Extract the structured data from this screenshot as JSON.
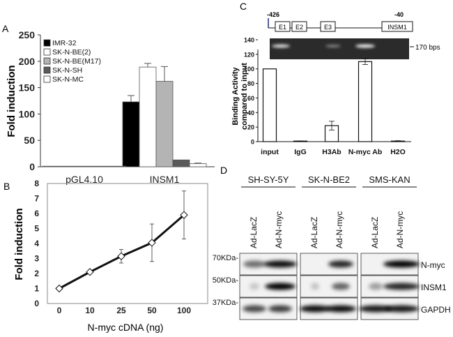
{
  "panels": {
    "A": {
      "label": "A",
      "chart_data": {
        "type": "bar",
        "ylabel": "Fold induction",
        "ylim": [
          0,
          250
        ],
        "yticks": [
          "0",
          "50",
          "100",
          "150",
          "200",
          "250"
        ],
        "categories": [
          "pGL4.10",
          "INSM1"
        ],
        "series": [
          {
            "name": "IMR-32",
            "color": "#000000",
            "values": [
              0.5,
              123
            ],
            "errors": [
              0,
              12
            ]
          },
          {
            "name": "SK-N-BE(2)",
            "color": "#ffffff",
            "values": [
              0.5,
              189
            ],
            "errors": [
              0,
              7
            ]
          },
          {
            "name": "SK-N-BE(M17)",
            "color": "#b4b4b4",
            "values": [
              0.5,
              162
            ],
            "errors": [
              0,
              28
            ]
          },
          {
            "name": "SK-N-SH",
            "color": "#5a5a5a",
            "values": [
              0.5,
              13
            ],
            "errors": [
              0,
              0
            ]
          },
          {
            "name": "SK-N-MC",
            "color": "#ffffff",
            "values": [
              0.5,
              6
            ],
            "errors": [
              0,
              1
            ]
          }
        ]
      }
    },
    "B": {
      "label": "B",
      "chart_data": {
        "type": "line",
        "xlabel": "N-myc  cDNA (ng)",
        "ylabel": "Fold induction",
        "ylim": [
          0,
          8
        ],
        "yticks": [
          "0",
          "1",
          "2",
          "3",
          "4",
          "5",
          "6",
          "7",
          "8"
        ],
        "categories": [
          "0",
          "10",
          "25",
          "50",
          "100"
        ],
        "values": [
          1.0,
          2.1,
          3.15,
          4.05,
          5.9
        ],
        "errors": [
          0,
          0,
          0.45,
          1.25,
          1.6
        ]
      }
    },
    "C": {
      "label": "C",
      "promoter": {
        "start": "-426",
        "end": "-40",
        "boxes": [
          "E1",
          "E2",
          "E3",
          "INSM1"
        ]
      },
      "gel_label": "170 bps",
      "chart_data": {
        "type": "bar",
        "ylabel": "Binding Activity compared to input",
        "ylabel_lines": [
          "Binding Activity",
          "compared to input"
        ],
        "ylim": [
          0,
          140
        ],
        "yticks": [
          "0",
          "20",
          "40",
          "60",
          "80",
          "100",
          "120",
          "140"
        ],
        "categories": [
          "input",
          "IgG",
          "H3Ab",
          "N-myc  Ab",
          "H2O"
        ],
        "values": [
          100,
          0.5,
          22,
          110,
          0.5
        ],
        "errors": [
          0,
          0.5,
          6,
          4,
          0.8
        ]
      }
    },
    "D": {
      "label": "D",
      "cell_lines": [
        "SH-SY-5Y",
        "SK-N-BE2",
        "SMS-KAN"
      ],
      "lanes": [
        "Ad-LacZ",
        "Ad-N-myc"
      ],
      "markers": [
        "70KDa-",
        "50KDa-",
        "37KDa-"
      ],
      "proteins": [
        "N-myc",
        "INSM1",
        "GAPDH"
      ]
    }
  }
}
